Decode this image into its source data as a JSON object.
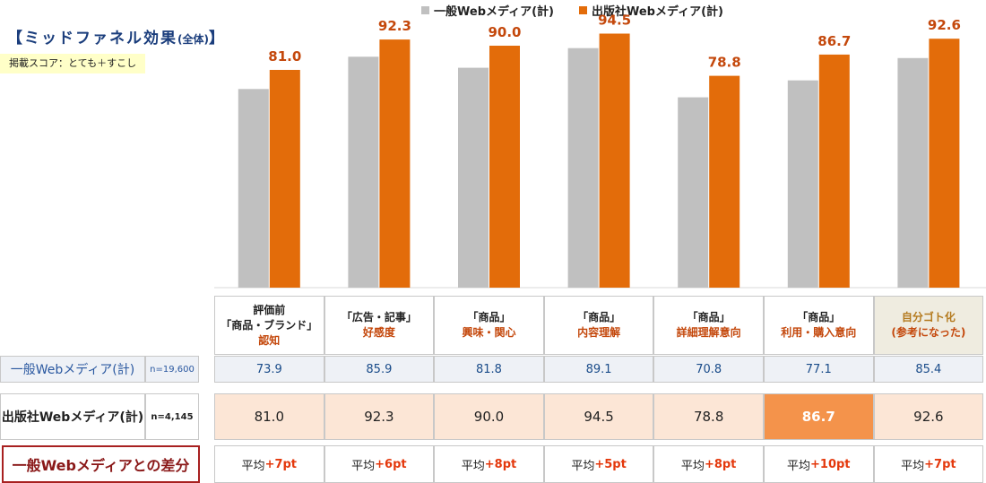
{
  "title": {
    "main": "【ミッドファネル効果",
    "sub": "(全体)",
    "close": "】"
  },
  "note": "掲載スコア：とても＋すこし",
  "colors": {
    "general": "#c0c0c0",
    "publisher": "#e36c0a",
    "highlight": "#f4934b",
    "label_orange": "#c4480c"
  },
  "chart_data": {
    "type": "bar",
    "categories": [
      "評価前「商品・ブランド」認知",
      "「広告・記事」好感度",
      "「商品」興味・関心",
      "「商品」内容理解",
      "「商品」詳細理解意向",
      "「商品」利用・購入意向",
      "自分ゴト化(参考になった)"
    ],
    "series": [
      {
        "name": "一般Webメディア(計)",
        "values": [
          73.9,
          85.9,
          81.8,
          89.1,
          70.8,
          77.1,
          85.4
        ]
      },
      {
        "name": "出版社Webメディア(計)",
        "values": [
          81.0,
          92.3,
          90.0,
          94.5,
          78.8,
          86.7,
          92.6
        ]
      }
    ],
    "data_labels": [
      "81.0",
      "92.3",
      "90.0",
      "94.5",
      "78.8",
      "86.7",
      "92.6"
    ],
    "ylim": [
      0,
      100
    ],
    "grid": false,
    "legend": "top"
  },
  "table": {
    "headers": [
      {
        "l1": "評価前",
        "l2": "「商品・ブランド」",
        "l3": "認知"
      },
      {
        "l1": "「広告・記事」",
        "l2": "好感度"
      },
      {
        "l1": "「商品」",
        "l2": "興味・関心"
      },
      {
        "l1": "「商品」",
        "l2": "内容理解"
      },
      {
        "l1": "「商品」",
        "l2": "詳細理解意向"
      },
      {
        "l1": "「商品」",
        "l2": "利用・購入意向"
      },
      {
        "l1": "自分ゴト化",
        "l2": "(参考になった)"
      }
    ],
    "general": {
      "label": "一般Webメディア(計)",
      "n": "n=19,600",
      "values": [
        "73.9",
        "85.9",
        "81.8",
        "89.1",
        "70.8",
        "77.1",
        "85.4"
      ]
    },
    "publisher": {
      "label": "出版社Webメディア(計)",
      "n": "n=4,145",
      "values": [
        "81.0",
        "92.3",
        "90.0",
        "94.5",
        "78.8",
        "86.7",
        "92.6"
      ],
      "highlight_index": 5
    },
    "diff": {
      "label": "一般Webメディアとの差分",
      "prefix": "平均",
      "values": [
        "+7pt",
        "+6pt",
        "+8pt",
        "+5pt",
        "+8pt",
        "+10pt",
        "+7pt"
      ]
    }
  }
}
